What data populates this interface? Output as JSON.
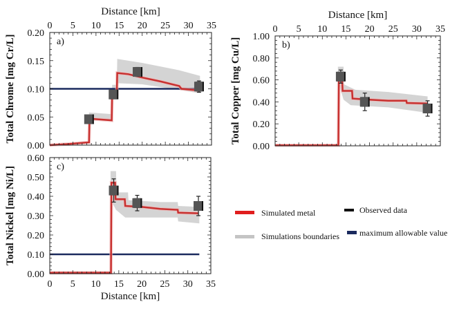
{
  "legend": {
    "simulated": {
      "label": "Simulated metal",
      "color": "#d42a2a"
    },
    "bounds": {
      "label": "Simulations boundaries",
      "color": "#c4c4c4"
    },
    "observed": {
      "label": "Observed data",
      "color": "#111111"
    },
    "max": {
      "label": "maximum allowable value",
      "color": "#1a2a5e"
    }
  },
  "chart_data": [
    {
      "type": "line",
      "panel_label": "a)",
      "title": "",
      "xlabel": "Distance [km]",
      "xlabel_position": "top",
      "ylabel": "Total Chrome  [mg Cr/L]",
      "xlim": [
        0,
        35
      ],
      "ylim": [
        0,
        0.2
      ],
      "xticks": [
        "0",
        "5",
        "10",
        "15",
        "20",
        "25",
        "30",
        "35"
      ],
      "yticks": [
        "0.00",
        "0.05",
        "0.10",
        "0.15",
        "0.20"
      ],
      "max_allowable": 0.1,
      "simulated": [
        [
          0,
          0
        ],
        [
          4,
          0.002
        ],
        [
          8.5,
          0.005
        ],
        [
          8.6,
          0.047
        ],
        [
          13.4,
          0.044
        ],
        [
          13.5,
          0.09
        ],
        [
          14.5,
          0.09
        ],
        [
          14.6,
          0.128
        ],
        [
          17,
          0.126
        ],
        [
          20,
          0.12
        ],
        [
          24,
          0.113
        ],
        [
          28,
          0.105
        ],
        [
          28.5,
          0.1
        ],
        [
          32.5,
          0.097
        ]
      ],
      "bounds_upper": [
        [
          8.5,
          0.058
        ],
        [
          13.4,
          0.055
        ],
        [
          13.5,
          0.107
        ],
        [
          14.5,
          0.107
        ],
        [
          14.6,
          0.153
        ],
        [
          20,
          0.146
        ],
        [
          28,
          0.133
        ],
        [
          32.5,
          0.123
        ]
      ],
      "bounds_lower": [
        [
          8.5,
          0.045
        ],
        [
          13.4,
          0.044
        ],
        [
          13.5,
          0.085
        ],
        [
          14.5,
          0.085
        ],
        [
          14.6,
          0.11
        ],
        [
          20,
          0.108
        ],
        [
          28,
          0.098
        ],
        [
          32.5,
          0.092
        ]
      ],
      "observed": [
        {
          "x": 8.5,
          "y": 0.046,
          "err": 0.003
        },
        {
          "x": 13.8,
          "y": 0.09,
          "err": 0.004
        },
        {
          "x": 19,
          "y": 0.13,
          "err": 0.008
        },
        {
          "x": 32.3,
          "y": 0.104,
          "err": 0.01
        }
      ]
    },
    {
      "type": "line",
      "panel_label": "b)",
      "title": "",
      "xlabel": "Distance [km]",
      "xlabel_position": "top",
      "ylabel": "Total Copper [mg Cu/L]",
      "xlim": [
        0,
        35
      ],
      "ylim": [
        0,
        1.0
      ],
      "xticks": [
        "0",
        "5",
        "10",
        "15",
        "20",
        "25",
        "30",
        "35"
      ],
      "yticks": [
        "0.00",
        "0.20",
        "0.40",
        "0.60",
        "0.80",
        "1.00"
      ],
      "max_allowable": null,
      "simulated": [
        [
          0,
          0.005
        ],
        [
          13.4,
          0.005
        ],
        [
          13.5,
          0.6
        ],
        [
          14.2,
          0.6
        ],
        [
          14.3,
          0.5
        ],
        [
          16.3,
          0.5
        ],
        [
          16.4,
          0.43
        ],
        [
          20,
          0.42
        ],
        [
          24,
          0.41
        ],
        [
          27.8,
          0.41
        ],
        [
          27.9,
          0.39
        ],
        [
          32.3,
          0.385
        ]
      ],
      "bounds_upper": [
        [
          13.3,
          0.72
        ],
        [
          14.5,
          0.72
        ],
        [
          14.6,
          0.56
        ],
        [
          17,
          0.51
        ],
        [
          24,
          0.49
        ],
        [
          32.3,
          0.45
        ]
      ],
      "bounds_lower": [
        [
          13.3,
          0.0
        ],
        [
          13.6,
          0.55
        ],
        [
          14.5,
          0.42
        ],
        [
          16,
          0.37
        ],
        [
          24,
          0.35
        ],
        [
          32.3,
          0.3
        ]
      ],
      "observed": [
        {
          "x": 13.9,
          "y": 0.63,
          "err": 0.06
        },
        {
          "x": 19,
          "y": 0.4,
          "err": 0.08
        },
        {
          "x": 32.3,
          "y": 0.34,
          "err": 0.07
        }
      ]
    },
    {
      "type": "line",
      "panel_label": "c)",
      "title": "",
      "xlabel": "Distance [km]",
      "xlabel_position": "bottom",
      "ylabel": "Total Nickel [mg Ni/L]",
      "xlim": [
        0,
        35
      ],
      "ylim": [
        0,
        0.6
      ],
      "xticks": [
        "0",
        "5",
        "10",
        "15",
        "20",
        "25",
        "30",
        "35"
      ],
      "yticks": [
        "0.00",
        "0.10",
        "0.20",
        "0.30",
        "0.40",
        "0.50",
        "0.60"
      ],
      "max_allowable": 0.1,
      "simulated": [
        [
          0,
          0.005
        ],
        [
          13.3,
          0.005
        ],
        [
          13.4,
          0.47
        ],
        [
          14.2,
          0.47
        ],
        [
          14.3,
          0.385
        ],
        [
          16.3,
          0.385
        ],
        [
          16.4,
          0.35
        ],
        [
          20,
          0.345
        ],
        [
          24,
          0.335
        ],
        [
          27.8,
          0.33
        ],
        [
          27.9,
          0.315
        ],
        [
          32.3,
          0.312
        ]
      ],
      "bounds_upper": [
        [
          13.2,
          0.53
        ],
        [
          14.4,
          0.53
        ],
        [
          14.5,
          0.42
        ],
        [
          17,
          0.42
        ],
        [
          17.1,
          0.38
        ],
        [
          24,
          0.37
        ],
        [
          27.8,
          0.37
        ],
        [
          27.9,
          0.35
        ],
        [
          32.5,
          0.345
        ]
      ],
      "bounds_lower": [
        [
          13.2,
          0.0
        ],
        [
          13.5,
          0.37
        ],
        [
          14.4,
          0.33
        ],
        [
          16.4,
          0.29
        ],
        [
          24,
          0.29
        ],
        [
          27.8,
          0.29
        ],
        [
          27.9,
          0.27
        ],
        [
          32.5,
          0.26
        ]
      ],
      "observed": [
        {
          "x": 13.9,
          "y": 0.43,
          "err": 0.06
        },
        {
          "x": 19,
          "y": 0.365,
          "err": 0.04
        },
        {
          "x": 32.3,
          "y": 0.35,
          "err": 0.05
        }
      ]
    }
  ]
}
